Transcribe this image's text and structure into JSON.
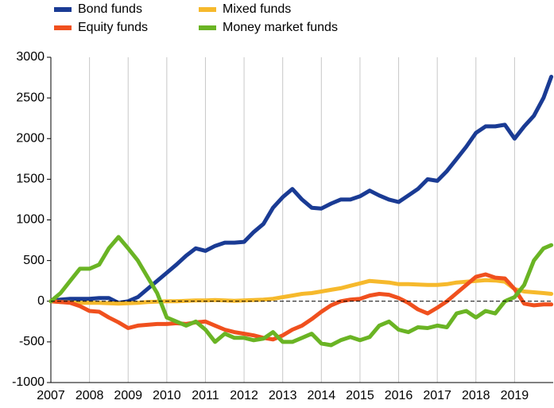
{
  "chart_data": {
    "type": "line",
    "x": [
      2007,
      2007.25,
      2007.5,
      2007.75,
      2008,
      2008.25,
      2008.5,
      2008.75,
      2009,
      2009.25,
      2009.5,
      2009.75,
      2010,
      2010.25,
      2010.5,
      2010.75,
      2011,
      2011.25,
      2011.5,
      2011.75,
      2012,
      2012.25,
      2012.5,
      2012.75,
      2013,
      2013.25,
      2013.5,
      2013.75,
      2014,
      2014.25,
      2014.5,
      2014.75,
      2015,
      2015.25,
      2015.5,
      2015.75,
      2016,
      2016.25,
      2016.5,
      2016.75,
      2017,
      2017.25,
      2017.5,
      2017.75,
      2018,
      2018.25,
      2018.5,
      2018.75,
      2019,
      2019.25,
      2019.5,
      2019.75,
      2019.95
    ],
    "series": [
      {
        "name": "Bond funds",
        "color": "#1a3b94",
        "values": [
          0,
          20,
          30,
          30,
          30,
          40,
          40,
          -20,
          0,
          50,
          150,
          250,
          350,
          450,
          560,
          650,
          620,
          680,
          720,
          720,
          730,
          850,
          950,
          1150,
          1280,
          1380,
          1250,
          1150,
          1140,
          1200,
          1250,
          1250,
          1290,
          1360,
          1300,
          1250,
          1220,
          1300,
          1380,
          1500,
          1480,
          1600,
          1750,
          1900,
          2070,
          2150,
          2150,
          2170,
          2000,
          2150,
          2280,
          2500,
          2760
        ]
      },
      {
        "name": "Mixed funds",
        "color": "#f6b92c",
        "values": [
          0,
          -10,
          -15,
          -20,
          -20,
          -20,
          -25,
          -30,
          -25,
          -20,
          -10,
          -5,
          0,
          0,
          5,
          10,
          10,
          15,
          10,
          5,
          10,
          15,
          20,
          30,
          50,
          70,
          90,
          100,
          120,
          140,
          160,
          190,
          220,
          250,
          240,
          230,
          210,
          210,
          205,
          200,
          200,
          210,
          230,
          240,
          250,
          260,
          255,
          240,
          150,
          120,
          110,
          100,
          90
        ]
      },
      {
        "name": "Equity funds",
        "color": "#f0501e",
        "values": [
          0,
          -10,
          -20,
          -60,
          -120,
          -130,
          -200,
          -260,
          -330,
          -300,
          -290,
          -280,
          -280,
          -270,
          -280,
          -260,
          -250,
          -300,
          -350,
          -380,
          -400,
          -420,
          -450,
          -470,
          -420,
          -350,
          -300,
          -220,
          -130,
          -50,
          0,
          20,
          30,
          70,
          90,
          80,
          40,
          -20,
          -100,
          -150,
          -80,
          0,
          100,
          200,
          300,
          330,
          290,
          280,
          150,
          -30,
          -50,
          -40,
          -40
        ]
      },
      {
        "name": "Money market funds",
        "color": "#6ab424",
        "values": [
          0,
          100,
          250,
          400,
          400,
          450,
          650,
          790,
          650,
          500,
          300,
          100,
          -200,
          -250,
          -300,
          -250,
          -350,
          -500,
          -400,
          -450,
          -450,
          -480,
          -460,
          -380,
          -500,
          -500,
          -450,
          -400,
          -520,
          -540,
          -480,
          -440,
          -480,
          -440,
          -300,
          -250,
          -350,
          -380,
          -320,
          -330,
          -300,
          -320,
          -150,
          -120,
          -200,
          -120,
          -150,
          0,
          50,
          200,
          500,
          650,
          690
        ]
      }
    ],
    "xlim": [
      2007,
      2020
    ],
    "xticks": [
      2007,
      2008,
      2009,
      2010,
      2011,
      2012,
      2013,
      2014,
      2015,
      2016,
      2017,
      2018,
      2019
    ],
    "ylim": [
      -1000,
      3000
    ],
    "yticks": [
      -1000,
      -500,
      0,
      500,
      1000,
      1500,
      2000,
      2500,
      3000
    ],
    "grid": "x",
    "zero_line": true,
    "legend_position": "top"
  }
}
